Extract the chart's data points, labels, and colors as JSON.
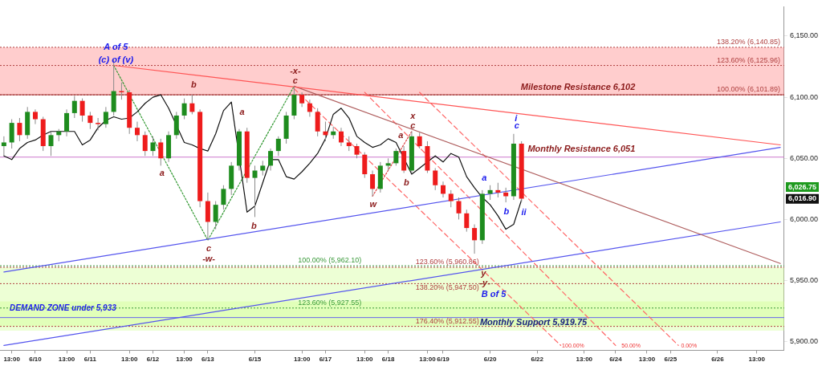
{
  "chart_data": {
    "type": "candlestick",
    "categories": [
      null,
      "13:00",
      null,
      null,
      "6/10",
      null,
      null,
      null,
      "13:00",
      null,
      null,
      "6/11",
      null,
      null,
      null,
      null,
      "13:00",
      null,
      null,
      "6/12",
      null,
      null,
      null,
      "13:00",
      null,
      null,
      "6/13",
      null,
      null,
      null,
      null,
      null,
      "6/15",
      null,
      null,
      null,
      null,
      null,
      "13:00",
      null,
      null,
      "6/17",
      null,
      null,
      null,
      null,
      "13:00",
      null,
      null,
      "6/18",
      null,
      null,
      null,
      null,
      "13:00",
      null,
      "6/19",
      null,
      null,
      null,
      null,
      null,
      "6/20",
      null,
      null,
      null,
      null,
      null,
      "6/22",
      null,
      null,
      null,
      null,
      null,
      "13:00",
      null,
      null,
      null,
      "6/24",
      null,
      null,
      null,
      "13:00",
      null,
      null,
      "6/25",
      null,
      null,
      null,
      null,
      null,
      "6/26",
      null,
      null,
      null,
      null,
      "13:00",
      null,
      null,
      null
    ],
    "ohlc": [
      [
        6060,
        6068,
        6052,
        6063
      ],
      [
        6063,
        6082,
        6058,
        6079
      ],
      [
        6079,
        6083,
        6064,
        6069
      ],
      [
        6069,
        6092,
        6066,
        6088
      ],
      [
        6088,
        6090,
        6078,
        6082
      ],
      [
        6082,
        6084,
        6056,
        6060
      ],
      [
        6060,
        6072,
        6052,
        6069
      ],
      [
        6069,
        6074,
        6064,
        6072
      ],
      [
        6072,
        6090,
        6068,
        6087
      ],
      [
        6087,
        6101,
        6083,
        6097
      ],
      [
        6097,
        6099,
        6080,
        6085
      ],
      [
        6085,
        6088,
        6074,
        6079
      ],
      [
        6079,
        6083,
        6073,
        6078
      ],
      [
        6078,
        6092,
        6075,
        6088
      ],
      [
        6088,
        6131,
        6085,
        6105
      ],
      [
        6105,
        6112,
        6098,
        6104
      ],
      [
        6104,
        6106,
        6070,
        6075
      ],
      [
        6075,
        6080,
        6064,
        6069
      ],
      [
        6069,
        6072,
        6052,
        6056
      ],
      [
        6056,
        6068,
        6052,
        6063
      ],
      [
        6063,
        6066,
        6044,
        6050
      ],
      [
        6050,
        6072,
        6047,
        6069
      ],
      [
        6069,
        6088,
        6066,
        6085
      ],
      [
        6085,
        6099,
        6082,
        6095
      ],
      [
        6095,
        6102,
        6086,
        6088
      ],
      [
        6088,
        6090,
        6010,
        6015
      ],
      [
        6015,
        6022,
        5983,
        5998
      ],
      [
        5998,
        6015,
        5992,
        6012
      ],
      [
        6012,
        6028,
        6008,
        6025
      ],
      [
        6025,
        6047,
        6020,
        6044
      ],
      [
        6044,
        6074,
        6040,
        6072
      ],
      [
        6072,
        6075,
        6030,
        6034
      ],
      [
        6034,
        6044,
        6002,
        6040
      ],
      [
        6040,
        6048,
        6036,
        6044
      ],
      [
        6044,
        6058,
        6040,
        6056
      ],
      [
        6056,
        6068,
        6052,
        6066
      ],
      [
        6066,
        6088,
        6062,
        6085
      ],
      [
        6085,
        6109,
        6082,
        6102
      ],
      [
        6102,
        6104,
        6092,
        6095
      ],
      [
        6095,
        6098,
        6084,
        6088
      ],
      [
        6088,
        6091,
        6068,
        6072
      ],
      [
        6072,
        6080,
        6064,
        6069
      ],
      [
        6069,
        6076,
        6066,
        6072
      ],
      [
        6072,
        6075,
        6060,
        6063
      ],
      [
        6063,
        6068,
        6056,
        6060
      ],
      [
        6060,
        6062,
        6050,
        6053
      ],
      [
        6053,
        6055,
        6034,
        6037
      ],
      [
        6037,
        6040,
        6019,
        6025
      ],
      [
        6025,
        6047,
        6022,
        6044
      ],
      [
        6044,
        6050,
        6040,
        6046
      ],
      [
        6046,
        6058,
        6044,
        6056
      ],
      [
        6056,
        6060,
        6038,
        6040
      ],
      [
        6040,
        6072,
        6038,
        6068
      ],
      [
        6068,
        6071,
        6058,
        6060
      ],
      [
        6060,
        6064,
        6038,
        6040
      ],
      [
        6040,
        6042,
        6024,
        6028
      ],
      [
        6028,
        6031,
        6018,
        6021
      ],
      [
        6021,
        6024,
        6010,
        6015
      ],
      [
        6015,
        6018,
        6000,
        6005
      ],
      [
        6005,
        6008,
        5990,
        5993
      ],
      [
        5993,
        5996,
        5972,
        5983
      ],
      [
        5983,
        6024,
        5980,
        6021
      ],
      [
        6021,
        6028,
        6016,
        6024
      ],
      [
        6024,
        6030,
        6018,
        6022
      ],
      [
        6022,
        6026,
        6014,
        6019
      ],
      [
        6019,
        6070,
        6016,
        6062
      ],
      [
        6062,
        6064,
        6014,
        6017
      ],
      null,
      null,
      null,
      null,
      null,
      null,
      null,
      null,
      null,
      null,
      null,
      null,
      null,
      null,
      null,
      null,
      null,
      null,
      null,
      null,
      null,
      null,
      null,
      null,
      null,
      null,
      null,
      null,
      null,
      null,
      null,
      null,
      null
    ],
    "series": [
      {
        "type": "line",
        "color": "#111111",
        "line_style": "solid",
        "values": [
          6052,
          6049,
          6058,
          6063,
          6065,
          6069,
          6072,
          6072,
          null,
          6072,
          6061,
          6065,
          6075,
          6081,
          6084,
          6082,
          6083,
          6088,
          6095,
          6100,
          6102,
          6091,
          null,
          6063,
          6061,
          6058,
          6056,
          6070,
          6089,
          6096,
          null,
          6006,
          6011,
          6030,
          6049,
          6049,
          6035,
          6033,
          6039,
          6046,
          6054,
          6066,
          6086,
          6091,
          6083,
          6068,
          6063,
          6059,
          6061,
          6066,
          6063,
          null,
          6037,
          6042,
          6047,
          6052,
          6047,
          6054,
          6051,
          6035,
          6026,
          6018,
          6012,
          6003,
          5992,
          5996,
          6016,
          null,
          null,
          null,
          null,
          null,
          null,
          null,
          null,
          null,
          null,
          null,
          null,
          null,
          null,
          null,
          null,
          null,
          null,
          null,
          null,
          null,
          null,
          null,
          null,
          null,
          null,
          null,
          null,
          null,
          null,
          null,
          null,
          null
        ]
      },
      {
        "type": "line",
        "color": "#ff5555",
        "line_style": "solid",
        "values": [
          null,
          null,
          null,
          null,
          null,
          null,
          null,
          null,
          null,
          null,
          null,
          null,
          null,
          null,
          6126,
          null,
          null,
          null,
          null,
          null,
          null,
          null,
          null,
          null,
          null,
          null,
          null,
          null,
          null,
          null,
          null,
          null,
          null,
          null,
          null,
          null,
          null,
          null,
          null,
          null,
          null,
          null,
          null,
          null,
          null,
          null,
          null,
          null,
          null,
          null,
          null,
          null,
          null,
          null,
          null,
          null,
          null,
          null,
          null,
          null,
          null,
          null,
          null,
          null,
          null,
          null,
          null,
          null,
          null,
          null,
          null,
          null,
          null,
          null,
          null,
          null,
          null,
          null,
          null,
          null,
          null,
          null,
          null,
          null,
          null,
          null,
          null,
          null,
          null,
          null,
          null,
          null,
          null,
          null,
          null,
          null,
          null,
          null,
          null,
          6061
        ]
      },
      {
        "type": "line",
        "color": "#b06060",
        "line_style": "solid",
        "values": [
          null,
          null,
          null,
          null,
          null,
          null,
          null,
          null,
          null,
          null,
          null,
          null,
          null,
          null,
          null,
          null,
          null,
          null,
          null,
          null,
          null,
          null,
          null,
          null,
          null,
          null,
          null,
          null,
          null,
          null,
          null,
          null,
          null,
          null,
          null,
          null,
          null,
          6109,
          null,
          null,
          null,
          null,
          null,
          null,
          null,
          null,
          null,
          null,
          null,
          null,
          null,
          null,
          null,
          null,
          null,
          null,
          null,
          null,
          null,
          null,
          null,
          null,
          null,
          null,
          null,
          null,
          null,
          null,
          null,
          null,
          null,
          null,
          null,
          null,
          null,
          null,
          null,
          null,
          null,
          null,
          null,
          null,
          null,
          null,
          null,
          null,
          null,
          null,
          null,
          null,
          null,
          null,
          null,
          null,
          null,
          null,
          null,
          null,
          null,
          5964
        ]
      },
      {
        "type": "line",
        "color": "#5555ee",
        "line_style": "solid",
        "values": [
          5957,
          null,
          null,
          null,
          null,
          null,
          null,
          null,
          null,
          null,
          null,
          null,
          null,
          null,
          null,
          null,
          null,
          null,
          null,
          null,
          null,
          null,
          null,
          null,
          null,
          null,
          null,
          null,
          null,
          null,
          null,
          null,
          null,
          null,
          null,
          null,
          null,
          null,
          null,
          null,
          null,
          null,
          null,
          null,
          null,
          null,
          null,
          null,
          null,
          null,
          null,
          null,
          null,
          null,
          null,
          null,
          null,
          null,
          null,
          null,
          null,
          null,
          null,
          null,
          null,
          null,
          null,
          null,
          null,
          null,
          null,
          null,
          null,
          null,
          null,
          null,
          null,
          null,
          null,
          null,
          null,
          null,
          null,
          null,
          null,
          null,
          null,
          null,
          null,
          null,
          null,
          null,
          null,
          null,
          null,
          null,
          null,
          null,
          null,
          6059
        ]
      },
      {
        "type": "line",
        "color": "#5555ee",
        "line_style": "solid",
        "values": [
          5897,
          null,
          null,
          null,
          null,
          null,
          null,
          null,
          null,
          null,
          null,
          null,
          null,
          null,
          null,
          null,
          null,
          null,
          null,
          null,
          null,
          null,
          null,
          null,
          null,
          null,
          null,
          null,
          null,
          null,
          null,
          null,
          null,
          null,
          null,
          null,
          null,
          null,
          null,
          null,
          null,
          null,
          null,
          null,
          null,
          null,
          null,
          null,
          null,
          null,
          null,
          null,
          null,
          null,
          null,
          null,
          null,
          null,
          null,
          null,
          null,
          null,
          null,
          null,
          null,
          null,
          null,
          null,
          null,
          null,
          null,
          null,
          null,
          null,
          null,
          null,
          null,
          null,
          null,
          null,
          null,
          null,
          null,
          null,
          null,
          null,
          null,
          null,
          null,
          null,
          null,
          null,
          null,
          null,
          null,
          null,
          null,
          null,
          null,
          5998
        ]
      },
      {
        "type": "line",
        "color": "#ff6666",
        "line_style": "dashed",
        "values": [
          null,
          null,
          null,
          null,
          null,
          null,
          null,
          null,
          null,
          null,
          null,
          null,
          null,
          null,
          null,
          null,
          null,
          null,
          null,
          null,
          null,
          null,
          null,
          null,
          null,
          null,
          null,
          null,
          null,
          null,
          null,
          null,
          null,
          null,
          null,
          null,
          null,
          6107,
          null,
          null,
          null,
          null,
          null,
          null,
          null,
          null,
          null,
          null,
          null,
          null,
          null,
          null,
          null,
          null,
          null,
          null,
          null,
          null,
          null,
          null,
          null,
          null,
          null,
          null,
          null,
          null,
          null,
          null,
          null,
          null,
          null,
          5897,
          null,
          null,
          null,
          null,
          null,
          null,
          null,
          null,
          null,
          null,
          null,
          null,
          null,
          null,
          null,
          null,
          null,
          null,
          null,
          null,
          null,
          null,
          null,
          null,
          null,
          null,
          null,
          null
        ]
      },
      {
        "type": "line",
        "color": "#ff6666",
        "line_style": "dashed",
        "values": [
          null,
          null,
          null,
          null,
          null,
          null,
          null,
          null,
          null,
          null,
          null,
          null,
          null,
          null,
          null,
          null,
          null,
          null,
          null,
          null,
          null,
          null,
          null,
          null,
          null,
          null,
          null,
          null,
          null,
          null,
          null,
          null,
          null,
          null,
          null,
          null,
          null,
          null,
          null,
          null,
          null,
          null,
          null,
          null,
          null,
          null,
          6104,
          null,
          null,
          null,
          null,
          null,
          null,
          null,
          null,
          null,
          null,
          null,
          null,
          null,
          null,
          null,
          null,
          null,
          null,
          null,
          null,
          null,
          null,
          null,
          null,
          null,
          null,
          null,
          null,
          null,
          null,
          null,
          5897,
          null,
          null,
          null,
          null,
          null,
          null,
          null,
          null,
          null,
          null,
          null,
          null,
          null,
          null,
          null,
          null,
          null,
          null,
          null,
          null,
          null
        ]
      },
      {
        "type": "line",
        "color": "#ff6666",
        "line_style": "dashed",
        "values": [
          null,
          null,
          null,
          null,
          null,
          null,
          null,
          null,
          null,
          null,
          null,
          null,
          null,
          null,
          null,
          null,
          null,
          null,
          null,
          null,
          null,
          null,
          null,
          null,
          null,
          null,
          null,
          null,
          null,
          null,
          null,
          null,
          null,
          null,
          null,
          null,
          null,
          null,
          null,
          null,
          null,
          null,
          null,
          null,
          null,
          null,
          null,
          null,
          null,
          null,
          null,
          null,
          null,
          6104,
          null,
          null,
          null,
          null,
          null,
          null,
          null,
          null,
          null,
          null,
          null,
          null,
          null,
          null,
          null,
          null,
          null,
          null,
          null,
          null,
          null,
          null,
          null,
          null,
          null,
          null,
          null,
          null,
          null,
          null,
          null,
          null,
          5897,
          null,
          null,
          null,
          null,
          null,
          null,
          null,
          null,
          null,
          null,
          null,
          null,
          null
        ]
      },
      {
        "type": "line",
        "color": "#339933",
        "line_style": "dotted",
        "values": [
          null,
          null,
          null,
          null,
          null,
          null,
          null,
          null,
          null,
          null,
          null,
          null,
          null,
          null,
          6126,
          null,
          null,
          null,
          null,
          null,
          null,
          null,
          null,
          null,
          null,
          null,
          5983,
          null,
          null,
          null,
          null,
          null,
          null,
          null,
          null,
          null,
          null,
          6109,
          null,
          null,
          null,
          null,
          null,
          null,
          null,
          null,
          null,
          null,
          null,
          null,
          null,
          null,
          null,
          null,
          null,
          null,
          null,
          null,
          null,
          null,
          null,
          null,
          null,
          null,
          null,
          null,
          null,
          null,
          null,
          null,
          null,
          null,
          null,
          null,
          null,
          null,
          null,
          null,
          null,
          null,
          null,
          null,
          null,
          null,
          null,
          null,
          null,
          null,
          null,
          null,
          null,
          null,
          null,
          null,
          null,
          null,
          null,
          null,
          null,
          null
        ]
      },
      {
        "type": "line",
        "color": "#dd4444",
        "line_style": "dotted",
        "values": [
          null,
          null,
          null,
          null,
          null,
          null,
          null,
          null,
          null,
          null,
          null,
          null,
          null,
          null,
          null,
          null,
          null,
          null,
          null,
          null,
          null,
          null,
          null,
          null,
          null,
          null,
          null,
          null,
          null,
          null,
          null,
          null,
          null,
          null,
          null,
          null,
          null,
          null,
          null,
          null,
          null,
          null,
          null,
          null,
          null,
          null,
          null,
          6019,
          null,
          null,
          null,
          null,
          6072,
          null,
          null,
          null,
          null,
          null,
          null,
          null,
          null,
          null,
          null,
          null,
          null,
          null,
          null,
          null,
          null,
          null,
          null,
          null,
          null,
          null,
          null,
          null,
          null,
          null,
          null,
          null,
          null,
          null,
          null,
          null,
          null,
          null,
          null,
          null,
          null,
          null,
          null,
          null,
          null,
          null,
          null,
          null,
          null,
          null,
          null,
          null
        ]
      }
    ],
    "ylim": [
      5893,
      6174
    ],
    "yticks": [
      {
        "value": 5900,
        "label": "5,900.00"
      },
      {
        "value": 5950,
        "label": "5,950.00"
      },
      {
        "value": 6000,
        "label": "6,000.00"
      },
      {
        "value": 6050,
        "label": "6,050.00"
      },
      {
        "value": 6100,
        "label": "6,100.00"
      },
      {
        "value": 6150,
        "label": "6,150.00"
      }
    ],
    "bands": [
      {
        "axis": "y",
        "from": 6101.89,
        "to": 6140.85,
        "color": "#ff7070"
      },
      {
        "axis": "y",
        "from": 5912.55,
        "to": 5960.86,
        "color": "#ccff88"
      },
      {
        "axis": "y",
        "from": 5909,
        "to": 5933,
        "label": "DEMAND ZONE under 5,933",
        "color": "#ccff88"
      }
    ],
    "ref_lines": [
      {
        "axis": "y",
        "value": 6140.85,
        "label": "138.20% (6,140.85)",
        "color": "#b04040",
        "line_style": "dotted"
      },
      {
        "axis": "y",
        "value": 6125.96,
        "label": "123.60% (6,125.96)",
        "color": "#b04040",
        "line_style": "dotted"
      },
      {
        "axis": "y",
        "value": 6101.89,
        "label": "100.00% (6,101.89)",
        "color": "#b04040",
        "line_style": "dotted"
      },
      {
        "axis": "y",
        "value": 6102,
        "label": "Milestone Resistance 6,102",
        "color": "#a03030",
        "line_style": "solid"
      },
      {
        "axis": "y",
        "value": 6051,
        "label": "Monthly Resistance 6,051",
        "color": "#cc77cc",
        "line_style": "solid"
      },
      {
        "axis": "y",
        "value": 5962.1,
        "label": "100.00% (5,962.10)",
        "color": "#3a9a3a",
        "line_style": "dotted"
      },
      {
        "axis": "y",
        "value": 5960.86,
        "label": "123.60% (5,960.86)",
        "color": "#b04040",
        "line_style": "dotted"
      },
      {
        "axis": "y",
        "value": 5947.5,
        "label": "138.20% (5,947.50)",
        "color": "#b04040",
        "line_style": "dotted"
      },
      {
        "axis": "y",
        "value": 5927.55,
        "label": "123.60% (5,927.55)",
        "color": "#3a9a3a",
        "line_style": "dotted"
      },
      {
        "axis": "y",
        "value": 5919.75,
        "label": "Monthly Support 5,919.75",
        "color": "#6666ee",
        "line_style": "solid"
      },
      {
        "axis": "y",
        "value": 5912.55,
        "label": "176.40% (5,912.55)",
        "color": "#b04040",
        "line_style": "dotted"
      }
    ],
    "annotations": [
      "A of 5",
      "(c) of (v)",
      "a",
      "b",
      "c",
      "-w-",
      "a",
      "b",
      "-x-",
      "c",
      "w",
      "a",
      "b",
      "x",
      "c",
      "a",
      "b",
      "i",
      "c",
      "ii",
      "y",
      "-y-",
      "B of 5",
      "100.00%",
      "50.00%",
      "0.00%",
      "6,026.75",
      "6,016.90"
    ]
  }
}
